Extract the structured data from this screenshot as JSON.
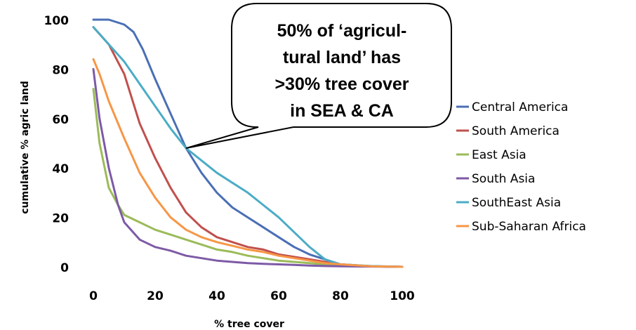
{
  "chart_data": {
    "type": "line",
    "xlabel": "% tree cover",
    "ylabel": "cumulative % agric land",
    "xlim": [
      0,
      100
    ],
    "ylim": [
      0,
      100
    ],
    "x_ticks": [
      "0",
      "20",
      "40",
      "60",
      "80",
      "100"
    ],
    "y_ticks": [
      "0",
      "20",
      "40",
      "60",
      "80",
      "100"
    ],
    "grid": false,
    "legend_position": "right",
    "series": [
      {
        "name": "Central America",
        "color": "#4A6FB5",
        "x": [
          0,
          5,
          10,
          13,
          16,
          20,
          25,
          30,
          35,
          40,
          45,
          50,
          55,
          60,
          65,
          70,
          75,
          80,
          90,
          100
        ],
        "y": [
          100,
          100,
          98,
          95,
          88,
          76,
          62,
          48,
          38,
          30,
          24,
          20,
          16,
          12,
          8,
          5,
          3,
          1,
          0.2,
          0
        ]
      },
      {
        "name": "South America",
        "color": "#C0504D",
        "x": [
          0,
          5,
          10,
          15,
          20,
          25,
          30,
          35,
          40,
          45,
          50,
          55,
          60,
          65,
          70,
          75,
          80,
          90,
          100
        ],
        "y": [
          97,
          90,
          78,
          58,
          44,
          32,
          22,
          16,
          12,
          10,
          8,
          7,
          5,
          4,
          3,
          2,
          1,
          0.2,
          0
        ]
      },
      {
        "name": "East Asia",
        "color": "#9BBB59",
        "x": [
          0,
          2,
          5,
          8,
          10,
          15,
          20,
          25,
          30,
          35,
          40,
          45,
          50,
          55,
          60,
          65,
          70,
          75,
          80,
          90,
          100
        ],
        "y": [
          72,
          50,
          32,
          25,
          21,
          18,
          15,
          13,
          11,
          9,
          7,
          6,
          4.5,
          3.5,
          2.5,
          2,
          1.5,
          1,
          0.5,
          0.2,
          0
        ]
      },
      {
        "name": "South Asia",
        "color": "#7D5AA6",
        "x": [
          0,
          2,
          5,
          8,
          10,
          15,
          20,
          25,
          30,
          35,
          40,
          45,
          50,
          55,
          60,
          65,
          70,
          75,
          80,
          90,
          100
        ],
        "y": [
          80,
          60,
          40,
          25,
          18,
          11,
          8,
          6.5,
          4.5,
          3.5,
          2.5,
          2,
          1.5,
          1.2,
          1,
          0.8,
          0.5,
          0.3,
          0.2,
          0.1,
          0
        ]
      },
      {
        "name": "SouthEast Asia",
        "color": "#4BACC6",
        "x": [
          0,
          5,
          10,
          15,
          20,
          25,
          30,
          35,
          40,
          45,
          50,
          55,
          60,
          65,
          70,
          75,
          80,
          90,
          100
        ],
        "y": [
          97,
          90,
          83,
          74,
          65,
          56,
          48,
          43,
          38,
          34,
          30,
          25,
          20,
          14,
          8,
          3,
          1,
          0.3,
          0
        ]
      },
      {
        "name": "Sub-Saharan Africa",
        "color": "#F79646",
        "x": [
          0,
          2,
          5,
          10,
          15,
          20,
          25,
          30,
          35,
          40,
          45,
          50,
          55,
          60,
          65,
          70,
          75,
          80,
          90,
          100
        ],
        "y": [
          84,
          78,
          67,
          52,
          38,
          28,
          20,
          15,
          12,
          10,
          8.5,
          7,
          6,
          4.5,
          3.5,
          2.5,
          1.5,
          1,
          0.2,
          0
        ]
      }
    ],
    "annotation": {
      "lines": [
        "50% of ‘agricul-",
        "tural land’  has",
        ">30% tree cover",
        "in SEA & CA"
      ],
      "pointer_x": 30,
      "pointer_y": 48
    }
  }
}
